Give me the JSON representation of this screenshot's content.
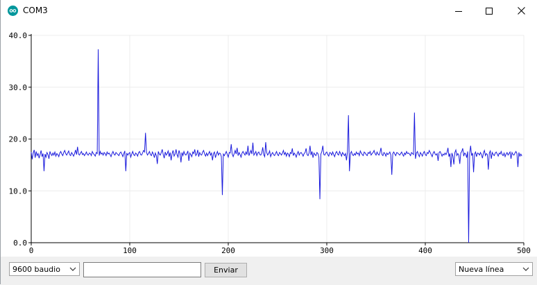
{
  "window": {
    "title": "COM3",
    "icon": "arduino-logo-icon",
    "controls": [
      "minimize-icon",
      "maximize-icon",
      "close-icon"
    ]
  },
  "plotter": {
    "line_color": "#1a1adc",
    "chart_data": {
      "type": "line",
      "xlim": [
        0,
        500
      ],
      "ylim": [
        0,
        40
      ],
      "x_ticks": [
        0,
        100,
        200,
        300,
        400,
        500
      ],
      "y_ticks": [
        "0.0",
        "10.0",
        "20.0",
        "30.0",
        "40.0"
      ],
      "grid": true,
      "series": [
        {
          "values": [
            17.5,
            16.1,
            17.3,
            17.9,
            16.4,
            17.6,
            16.8,
            17.2,
            16.3,
            17.0,
            17.8,
            16.6,
            17.2,
            13.8,
            17.1,
            16.5,
            17.4,
            17.0,
            16.2,
            17.6,
            17.1,
            16.8,
            17.3,
            16.9,
            17.5,
            16.7,
            17.2,
            17.0,
            16.6,
            17.3,
            17.6,
            17.1,
            16.8,
            17.4,
            17.8,
            17.2,
            16.9,
            17.3,
            17.7,
            17.0,
            16.8,
            17.4,
            17.1,
            16.7,
            17.2,
            17.9,
            17.0,
            18.5,
            17.1,
            16.9,
            17.3,
            17.6,
            17.0,
            17.2,
            16.8,
            17.1,
            17.5,
            17.0,
            16.9,
            17.3,
            17.2,
            16.8,
            17.6,
            17.2,
            17.0,
            16.7,
            17.4,
            17.2,
            37.3,
            16.8,
            17.6,
            17.1,
            17.3,
            16.9,
            17.4,
            17.2,
            16.8,
            17.5,
            17.1,
            17.3,
            17.0,
            16.6,
            17.2,
            17.6,
            17.1,
            16.9,
            17.4,
            17.2,
            17.0,
            16.8,
            17.3,
            17.5,
            17.1,
            16.6,
            17.2,
            17.7,
            13.8,
            17.3,
            16.9,
            17.2,
            17.4,
            16.5,
            17.1,
            17.6,
            17.0,
            16.8,
            17.3,
            17.1,
            16.7,
            17.4,
            17.6,
            17.0,
            16.9,
            17.3,
            17.8,
            17.5,
            21.2,
            17.4,
            16.9,
            17.2,
            17.6,
            17.0,
            16.8,
            17.5,
            17.1,
            16.4,
            17.3,
            16.8,
            15.2,
            17.6,
            17.1,
            16.9,
            17.4,
            18.0,
            17.0,
            16.3,
            17.5,
            16.9,
            17.2,
            17.7,
            16.6,
            17.4,
            15.9,
            17.2,
            17.8,
            16.7,
            17.1,
            18.0,
            17.0,
            16.5,
            17.8,
            17.2,
            15.5,
            17.4,
            16.8,
            17.6,
            17.1,
            16.9,
            17.2,
            17.7,
            15.8,
            17.3,
            17.0,
            16.6,
            17.5,
            17.2,
            18.0,
            16.8,
            17.1,
            17.9,
            16.6,
            17.4,
            17.0,
            16.9,
            17.5,
            17.8,
            17.1,
            16.7,
            17.3,
            16.8,
            17.2,
            17.6,
            16.9,
            17.3,
            15.9,
            17.2,
            17.5,
            16.4,
            17.1,
            17.6,
            16.9,
            17.3,
            17.2,
            16.6,
            9.2,
            17.1,
            16.8,
            17.2,
            17.6,
            17.0,
            16.5,
            17.4,
            17.3,
            19.0,
            17.1,
            16.6,
            17.2,
            17.8,
            17.1,
            18.3,
            16.8,
            17.4,
            17.0,
            16.5,
            17.3,
            17.6,
            17.2,
            16.9,
            17.5,
            17.0,
            18.7,
            16.8,
            17.3,
            17.8,
            17.1,
            19.3,
            16.9,
            17.2,
            17.6,
            16.8,
            17.3,
            17.5,
            17.0,
            16.9,
            17.3,
            18.4,
            17.0,
            16.6,
            19.4,
            17.4,
            16.9,
            17.2,
            17.7,
            16.6,
            17.1,
            17.4,
            17.0,
            16.8,
            17.2,
            17.6,
            17.0,
            16.8,
            17.4,
            17.2,
            16.9,
            17.3,
            17.8,
            17.0,
            17.4,
            16.7,
            17.3,
            17.1,
            16.6,
            17.4,
            17.2,
            18.2,
            16.8,
            17.3,
            17.0,
            16.5,
            17.2,
            17.6,
            16.9,
            17.3,
            17.4,
            17.1,
            16.7,
            17.2,
            17.4,
            18.2,
            17.0,
            16.8,
            17.3,
            18.7,
            16.9,
            17.6,
            16.4,
            17.3,
            17.0,
            16.8,
            17.4,
            17.2,
            16.5,
            8.4,
            17.1,
            17.6,
            18.7,
            17.0,
            16.9,
            17.3,
            17.5,
            17.0,
            16.7,
            17.4,
            17.3,
            16.9,
            17.5,
            17.0,
            16.6,
            17.3,
            17.6,
            17.1,
            16.9,
            17.6,
            17.2,
            16.7,
            17.4,
            17.1,
            16.8,
            17.2,
            15.9,
            17.5,
            24.6,
            13.8,
            17.2,
            17.6,
            17.0,
            16.8,
            17.2,
            16.9,
            17.5,
            17.1,
            17.3,
            16.8,
            17.7,
            17.3,
            17.0,
            16.8,
            17.5,
            17.3,
            17.0,
            16.8,
            17.4,
            17.2,
            17.6,
            16.9,
            17.2,
            17.4,
            17.8,
            17.2,
            16.9,
            17.5,
            17.1,
            16.9,
            17.4,
            18.3,
            17.0,
            16.8,
            17.4,
            17.2,
            16.7,
            17.3,
            17.0,
            17.2,
            17.5,
            16.9,
            13.1,
            17.2,
            17.5,
            17.1,
            16.8,
            17.4,
            17.3,
            17.1,
            16.9,
            17.2,
            17.5,
            17.0,
            16.7,
            17.3,
            17.0,
            17.6,
            17.2,
            17.3,
            17.1,
            16.8,
            17.4,
            17.2,
            17.0,
            25.1,
            16.2,
            17.3,
            17.6,
            17.0,
            16.6,
            17.4,
            17.1,
            16.7,
            17.3,
            17.6,
            17.0,
            16.8,
            17.4,
            17.2,
            17.8,
            17.4,
            17.0,
            16.6,
            17.3,
            17.6,
            17.1,
            16.9,
            17.2,
            15.8,
            17.4,
            17.6,
            17.2,
            16.7,
            17.1,
            16.9,
            17.3,
            17.0,
            17.4,
            18.3,
            16.6,
            17.2,
            14.6,
            17.3,
            16.7,
            15.1,
            17.4,
            17.9,
            16.8,
            17.2,
            16.9,
            15.2,
            17.3,
            17.6,
            18.2,
            16.7,
            17.3,
            17.1,
            16.4,
            17.6,
            0.0,
            17.2,
            18.7,
            16.8,
            17.3,
            13.6,
            17.1,
            17.5,
            16.6,
            17.3,
            17.2,
            16.9,
            17.4,
            17.0,
            16.3,
            17.3,
            17.8,
            16.8,
            17.2,
            17.0,
            14.1,
            17.3,
            17.7,
            16.2,
            17.4,
            17.0,
            16.8,
            17.3,
            17.5,
            17.1,
            16.7,
            17.3,
            17.1,
            17.6,
            17.0,
            16.8,
            17.3,
            16.6,
            17.1,
            17.4,
            16.9,
            17.2,
            17.5,
            16.2,
            17.4,
            17.0,
            16.9,
            17.3,
            17.6,
            17.2,
            14.6,
            17.4,
            16.7,
            17.1,
            16.7
          ]
        }
      ]
    }
  },
  "bottom": {
    "baud_select_value": "9600 baudio",
    "message_input_value": "",
    "send_label": "Enviar",
    "line_ending_value": "Nueva línea"
  }
}
